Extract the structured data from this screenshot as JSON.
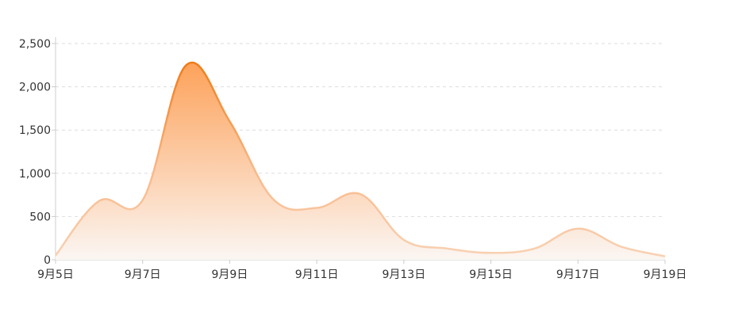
{
  "chart_data": {
    "type": "area",
    "title": "",
    "xlabel": "",
    "ylabel": "",
    "x": [
      "9月5日",
      "9月6日",
      "9月7日",
      "9月8日",
      "9月9日",
      "9月10日",
      "9月11日",
      "9月12日",
      "9月13日",
      "9月14日",
      "9月15日",
      "9月16日",
      "9月17日",
      "9月18日",
      "9月19日"
    ],
    "x_tick_labels": [
      "9月5日",
      "9月7日",
      "9月9日",
      "9月11日",
      "9月13日",
      "9月15日",
      "9月17日",
      "9月19日"
    ],
    "values": [
      50,
      680,
      690,
      2250,
      1600,
      700,
      600,
      760,
      230,
      130,
      80,
      130,
      360,
      150,
      40
    ],
    "ylim": [
      0,
      2500
    ],
    "y_ticks": [
      0,
      500,
      1000,
      1500,
      2000,
      2500
    ],
    "y_tick_labels": [
      "0",
      "500",
      "1,000",
      "1,500",
      "2,000",
      "2,500"
    ],
    "grid": true,
    "smooth": true,
    "colors": {
      "line_high": "#f07c1a",
      "line_low": "#f8d2b4",
      "fill_top": "#fda35c",
      "fill_bottom": "#fbf6f3"
    }
  }
}
